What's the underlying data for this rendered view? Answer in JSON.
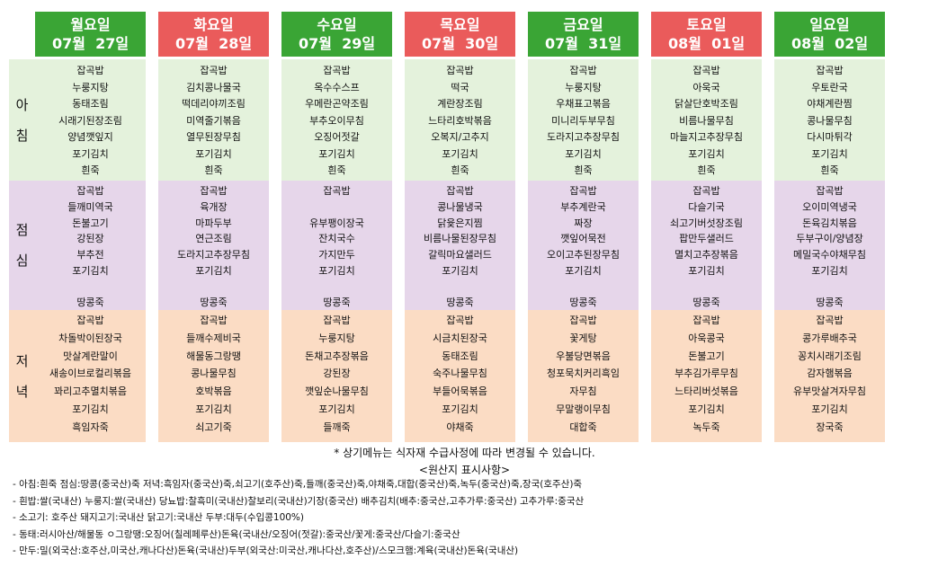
{
  "days": [
    {
      "name": "월요일",
      "date": "07월  27일",
      "color": "#3aa535"
    },
    {
      "name": "화요일",
      "date": "07월  28일",
      "color": "#ea5b5b"
    },
    {
      "name": "수요일",
      "date": "07월  29일",
      "color": "#3aa535"
    },
    {
      "name": "목요일",
      "date": "07월  30일",
      "color": "#ea5b5b"
    },
    {
      "name": "금요일",
      "date": "07월  31일",
      "color": "#3aa535"
    },
    {
      "name": "토요일",
      "date": "08월  01일",
      "color": "#ea5b5b"
    },
    {
      "name": "일요일",
      "date": "08월  02일",
      "color": "#3aa535"
    }
  ],
  "meals": {
    "breakfast": {
      "label": [
        "아",
        "침"
      ],
      "menus": [
        [
          "잡곡밥",
          "누룽지탕",
          "동태조림",
          "시래기된장조림",
          "양념깻잎지",
          "포기김치",
          "흰죽"
        ],
        [
          "잡곡밥",
          "김치콩나물국",
          "떡데리야끼조림",
          "미역줄기볶음",
          "열무된장무침",
          "포기김치",
          "흰죽"
        ],
        [
          "잡곡밥",
          "옥수수스프",
          "우메란곤약조림",
          "부추오이무침",
          "오징어젓갈",
          "포기김치",
          "흰죽"
        ],
        [
          "잡곡밥",
          "떡국",
          "계란장조림",
          "느타리호박볶음",
          "오복지/고추지",
          "포기김치",
          "흰죽"
        ],
        [
          "잡곡밥",
          "누룽지탕",
          "우채표고볶음",
          "미니리두부무침",
          "도라지고추장무침",
          "포기김치",
          "흰죽"
        ],
        [
          "잡곡밥",
          "아욱국",
          "닭살단호박조림",
          "비름나물무침",
          "마늘지고추장무침",
          "포기김치",
          "흰죽"
        ],
        [
          "잡곡밥",
          "우토란국",
          "야채계란찜",
          "콩나물무침",
          "다시마튀각",
          "포기김치",
          "흰죽"
        ]
      ]
    },
    "lunch": {
      "label": [
        "점",
        "심"
      ],
      "menus": [
        [
          "잡곡밥",
          "들깨미역국",
          "돈불고기",
          "강된장",
          "부추전",
          "포기김치",
          "",
          "땅콩죽"
        ],
        [
          "잡곡밥",
          "육개장",
          "마파두부",
          "연근조림",
          "도라지고추장무침",
          "포기김치",
          "",
          "땅콩죽"
        ],
        [
          "잡곡밥",
          "",
          "유부팽이장국",
          "잔치국수",
          "가지만두",
          "포기김치",
          "",
          "땅콩죽"
        ],
        [
          "잡곡밥",
          "콩나물냉국",
          "닭윷은지찜",
          "비름나물된장무침",
          "갈릭마요샐러드",
          "포기김치",
          "",
          "땅콩죽"
        ],
        [
          "잡곡밥",
          "부추계란국",
          "짜장",
          "깻잎어묵전",
          "오이고추된장무침",
          "포기김치",
          "",
          "땅콩죽"
        ],
        [
          "잡곡밥",
          "다슬기국",
          "쇠고기버섯장조림",
          "팝만두샐러드",
          "멸치고추장볶음",
          "포기김치",
          "",
          "땅콩죽"
        ],
        [
          "잡곡밥",
          "오이미역냉국",
          "돈육김치볶음",
          "두부구이/양념장",
          "메밀국수야채무침",
          "포기김치",
          "",
          "땅콩죽"
        ]
      ]
    },
    "dinner": {
      "label": [
        "저",
        "녁"
      ],
      "menus": [
        [
          "잡곡밥",
          "차돌박이된장국",
          "맛살계란말이",
          "새송이브로컬리볶음",
          "꽈리고추멸치볶음",
          "포기김치",
          "흑임자죽"
        ],
        [
          "잡곡밥",
          "들깨수제비국",
          "해물동그랑땡",
          "콩나물무침",
          "호박볶음",
          "포기김치",
          "쇠고기죽"
        ],
        [
          "잡곡밥",
          "누룽지탕",
          "돈채고추장볶음",
          "강된장",
          "깻잎순나물무침",
          "포기김치",
          "들깨죽"
        ],
        [
          "잡곡밥",
          "시금치된장국",
          "동태조림",
          "숙주나물무침",
          "부들어묵볶음",
          "포기김치",
          "야채죽"
        ],
        [
          "잡곡밥",
          "꽃게탕",
          "우불당면볶음",
          "청포묵치커리흑임",
          "자무침",
          "무말랭이무침",
          "대합죽"
        ],
        [
          "잡곡밥",
          "아욱콩국",
          "돈불고기",
          "부추김가루무침",
          "느타리버섯볶음",
          "포기김치",
          "녹두죽"
        ],
        [
          "잡곡밥",
          "콩가루배추국",
          "꽁치시래기조림",
          "감자햄볶음",
          "유부맛살겨자무침",
          "포기김치",
          "장국죽"
        ]
      ]
    }
  },
  "notice": "* 상기메뉴는 식자재 수급사정에 따라 변경될 수 있습니다.",
  "origin_title": "<원산지 표시사항>",
  "origin_lines": [
    "-  아침:흰죽 점심:땅콩(중국산)죽 저녁:흑임자(중국산)죽,쇠고기(호주산)죽,들깨(중국산)죽,야채죽,대합(중국산)죽,녹두(중국산)죽,장국(호주산)죽",
    "-  흰밥:쌀(국내산) 누룽지:쌀(국내산) 당뇨밥:찰흑미(국내산)찰보리(국내산)기장(중국산) 배추김치(배추:중국산,고추가루:중국산) 고추가루:중국산",
    "-  소고기: 호주산  돼지고기:국내산  닭고기:국내산  두부:대두(수입콩100%)",
    "-  동태:러시아산/해물동 ㅇ그랑땡:오징어(칠레페루산)돈육(국내산/오징어(젓갈):중국산/꽃게:중국산/다슬기:중국산",
    "-  만두:밀(외국산:호주산,미국산,캐나다산)돈육(국내산)두부(외국산:미국산,캐나다산,호주산)/스모크햄:계육(국내산)돈육(국내산)"
  ]
}
